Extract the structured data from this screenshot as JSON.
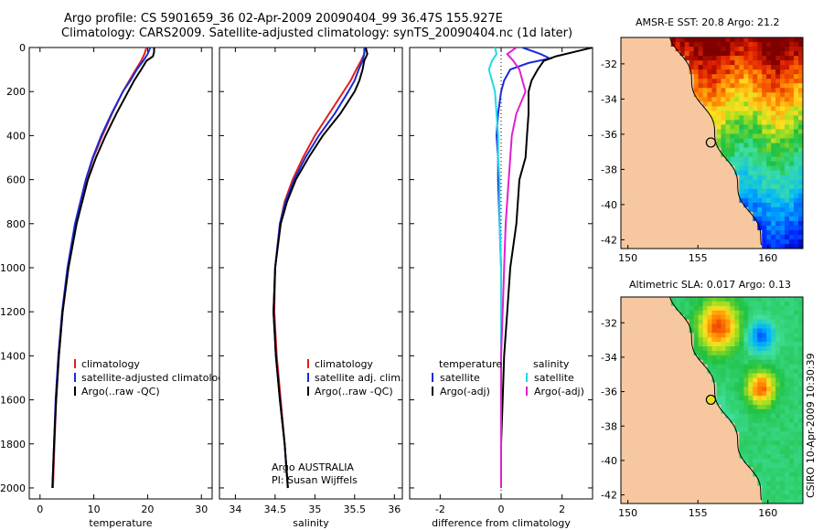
{
  "header": {
    "line1": "Argo profile: CS 5901659_36 02-Apr-2009 20090404_99 36.47S 155.927E",
    "line2": "Climatology: CARS2009. Satellite-adjusted climatology: synTS_20090404.nc (1d later)"
  },
  "colors": {
    "climatology": "#e02020",
    "satellite": "#1a2bd6",
    "argo": "#000000",
    "satellite_diff": "#22d8e8",
    "argo_adj_diff": "#e020d0",
    "land": "#f7c8a0"
  },
  "chart_data": [
    {
      "type": "line",
      "panel": "temperature",
      "xlabel": "temperature",
      "ylabel": "",
      "xlim": [
        -2,
        32
      ],
      "ylim": [
        2050,
        0
      ],
      "y_reversed": true,
      "xticks": [
        "0",
        "10",
        "20",
        "30"
      ],
      "yticks": [
        "0",
        "200",
        "400",
        "600",
        "800",
        "1000",
        "1200",
        "1400",
        "1600",
        "1800",
        "2000"
      ],
      "legend": [
        "climatology",
        "satellite-adjusted climatology",
        "Argo(..raw -QC)"
      ],
      "series": [
        {
          "name": "climatology",
          "depth": [
            0,
            30,
            60,
            100,
            150,
            200,
            300,
            400,
            500,
            600,
            800,
            1000,
            1200,
            1400,
            1600,
            1800,
            2000
          ],
          "values": [
            19.8,
            19.4,
            18.8,
            17.8,
            16.6,
            15.4,
            13.4,
            11.6,
            9.9,
            8.6,
            6.6,
            5.2,
            4.2,
            3.5,
            3.0,
            2.7,
            2.4
          ]
        },
        {
          "name": "satellite-adjusted climatology",
          "depth": [
            0,
            30,
            60,
            100,
            150,
            200,
            300,
            400,
            500,
            600,
            800,
            1000,
            1200,
            1400,
            1600,
            1800,
            2000
          ],
          "values": [
            20.5,
            20.0,
            19.2,
            18.0,
            16.8,
            15.4,
            13.3,
            11.4,
            9.8,
            8.5,
            6.5,
            5.1,
            4.1,
            3.4,
            2.9,
            2.6,
            2.3
          ]
        },
        {
          "name": "Argo(..raw -QC)",
          "depth": [
            0,
            20,
            40,
            60,
            100,
            150,
            200,
            300,
            400,
            500,
            600,
            800,
            1000,
            1200,
            1400,
            1600,
            1800,
            2000
          ],
          "values": [
            21.2,
            21.2,
            21.0,
            19.8,
            18.8,
            17.5,
            16.4,
            14.2,
            12.2,
            10.4,
            8.9,
            6.8,
            5.3,
            4.2,
            3.5,
            3.0,
            2.6,
            2.3
          ]
        }
      ]
    },
    {
      "type": "line",
      "panel": "salinity",
      "xlabel": "salinity",
      "ylabel": "",
      "xlim": [
        33.8,
        36.1
      ],
      "ylim": [
        2050,
        0
      ],
      "y_reversed": true,
      "xticks": [
        "34",
        "34.5",
        "35",
        "35.5",
        "36"
      ],
      "legend": [
        "climatology",
        "satellite adj. clim.",
        "Argo(..raw -QC)"
      ],
      "annotation": [
        "Argo AUSTRALIA",
        "PI: Susan Wijffels"
      ],
      "series": [
        {
          "name": "climatology",
          "depth": [
            0,
            30,
            60,
            100,
            150,
            200,
            300,
            400,
            500,
            600,
            700,
            800,
            1000,
            1200,
            1400,
            1600,
            1800,
            2000
          ],
          "values": [
            35.62,
            35.62,
            35.58,
            35.52,
            35.45,
            35.36,
            35.18,
            35.0,
            34.85,
            34.72,
            34.62,
            34.56,
            34.5,
            34.49,
            34.52,
            34.57,
            34.62,
            34.66
          ]
        },
        {
          "name": "satellite adj. clim.",
          "depth": [
            0,
            30,
            60,
            100,
            150,
            200,
            300,
            400,
            500,
            600,
            700,
            800,
            1000,
            1200,
            1400,
            1600,
            1800,
            2000
          ],
          "values": [
            35.63,
            35.62,
            35.6,
            35.55,
            35.5,
            35.42,
            35.25,
            35.05,
            34.88,
            34.74,
            34.63,
            34.56,
            34.5,
            34.48,
            34.51,
            34.56,
            34.62,
            34.66
          ]
        },
        {
          "name": "Argo(..raw -QC)",
          "depth": [
            0,
            30,
            60,
            100,
            150,
            200,
            300,
            400,
            500,
            600,
            700,
            800,
            1000,
            1200,
            1400,
            1600,
            1800,
            2000
          ],
          "values": [
            35.64,
            35.66,
            35.62,
            35.6,
            35.56,
            35.5,
            35.32,
            35.1,
            34.92,
            34.76,
            34.65,
            34.57,
            34.5,
            34.48,
            34.51,
            34.56,
            34.62,
            34.66
          ]
        }
      ]
    },
    {
      "type": "line",
      "panel": "difference",
      "xlabel": "difference from climatology",
      "ylabel": "",
      "xlim": [
        -3,
        3
      ],
      "ylim": [
        2050,
        0
      ],
      "y_reversed": true,
      "xticks": [
        "-2",
        "0",
        "2"
      ],
      "legend_left_title": "temperature",
      "legend_right_title": "salinity",
      "legend": [
        "satellite",
        "Argo(-adj)",
        "satellite",
        "Argo(-adj)"
      ],
      "series": [
        {
          "name": "temperature satellite",
          "depth": [
            0,
            30,
            50,
            70,
            100,
            150,
            200,
            300,
            400,
            500,
            600,
            800,
            1000,
            1200,
            1400,
            1600,
            1800,
            2000
          ],
          "values": [
            0.7,
            1.3,
            1.6,
            0.9,
            0.3,
            0.1,
            0.0,
            -0.1,
            -0.15,
            -0.1,
            -0.1,
            -0.05,
            0.0,
            0.0,
            0.0,
            0.0,
            0.0,
            0.0
          ]
        },
        {
          "name": "temperature Argo(-adj)",
          "depth": [
            0,
            20,
            40,
            60,
            100,
            150,
            200,
            300,
            400,
            500,
            600,
            800,
            1000,
            1200,
            1400,
            1600,
            1800,
            2000
          ],
          "values": [
            3.0,
            2.4,
            1.8,
            1.4,
            1.2,
            1.0,
            0.9,
            0.9,
            0.85,
            0.8,
            0.6,
            0.5,
            0.3,
            0.2,
            0.1,
            0.05,
            0.0,
            0.0
          ]
        },
        {
          "name": "salinity satellite",
          "depth": [
            0,
            30,
            60,
            100,
            150,
            200,
            300,
            400,
            500,
            600,
            800,
            1000,
            1200,
            1400,
            1600,
            1800,
            2000
          ],
          "values": [
            -0.2,
            -0.15,
            -0.3,
            -0.4,
            -0.3,
            -0.2,
            -0.15,
            -0.1,
            -0.1,
            -0.05,
            -0.05,
            0.0,
            0.0,
            0.0,
            0.0,
            0.0,
            0.0
          ]
        },
        {
          "name": "salinity Argo(-adj)",
          "depth": [
            0,
            30,
            60,
            100,
            150,
            200,
            300,
            400,
            500,
            600,
            800,
            1000,
            1200,
            1400,
            1600,
            1800,
            2000
          ],
          "values": [
            0.5,
            0.2,
            0.4,
            0.6,
            0.7,
            0.8,
            0.5,
            0.35,
            0.3,
            0.25,
            0.15,
            0.1,
            0.05,
            0.0,
            0.0,
            0.0,
            0.0
          ]
        }
      ]
    },
    {
      "type": "heatmap",
      "panel": "sst-map",
      "title": "AMSR-E SST: 20.8 Argo: 21.2",
      "xticks": [
        "150",
        "155",
        "160"
      ],
      "yticks": [
        "-32",
        "-34",
        "-36",
        "-38",
        "-40",
        "-42"
      ],
      "xlim": [
        149.5,
        162.5
      ],
      "ylim": [
        -42.5,
        -30.5
      ],
      "marker": {
        "lon": 155.927,
        "lat": -36.47
      }
    },
    {
      "type": "heatmap",
      "panel": "sla-map",
      "title": "Altimetric SLA: 0.017 Argo: 0.13",
      "xticks": [
        "150",
        "155",
        "160"
      ],
      "yticks": [
        "-32",
        "-34",
        "-36",
        "-38",
        "-40",
        "-42"
      ],
      "xlim": [
        149.5,
        162.5
      ],
      "ylim": [
        -42.5,
        -30.5
      ],
      "marker": {
        "lon": 155.927,
        "lat": -36.47
      }
    }
  ],
  "footer": {
    "credit": "CSIRO 10-Apr-2009 10:30:39"
  }
}
